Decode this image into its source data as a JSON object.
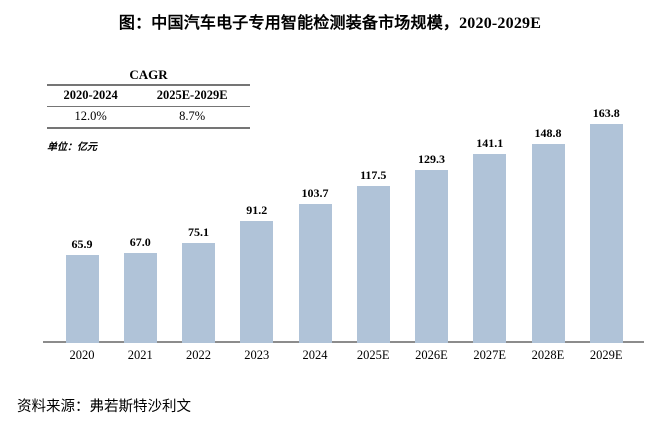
{
  "title": "图：中国汽车电子专用智能检测装备市场规模，2020-2029E",
  "cagr_table": {
    "caption": "CAGR",
    "columns": [
      "2020-2024",
      "2025E-2029E"
    ],
    "values": [
      "12.0%",
      "8.7%"
    ]
  },
  "unit_label": "单位：亿元",
  "source": "资料来源：弗若斯特沙利文",
  "chart_data": {
    "type": "bar",
    "title": "中国汽车电子专用智能检测装备市场规模，2020-2029E",
    "categories": [
      "2020",
      "2021",
      "2022",
      "2023",
      "2024",
      "2025E",
      "2026E",
      "2027E",
      "2028E",
      "2029E"
    ],
    "values": [
      65.9,
      67.0,
      75.1,
      91.2,
      103.7,
      117.5,
      129.3,
      141.1,
      148.8,
      163.8
    ],
    "value_labels": [
      "65.9",
      "67.0",
      "75.1",
      "91.2",
      "103.7",
      "117.5",
      "129.3",
      "141.1",
      "148.8",
      "163.8"
    ],
    "xlabel": "",
    "ylabel": "亿元",
    "ylim": [
      0,
      175
    ],
    "grid": false,
    "legend": null,
    "bar_color": "#b0c3d8",
    "axis_color": "#8c8c8c"
  },
  "colors": {
    "bar": "#b0c3d8",
    "axis": "#8c8c8c",
    "table_line": "#757575",
    "text": "#000000"
  }
}
